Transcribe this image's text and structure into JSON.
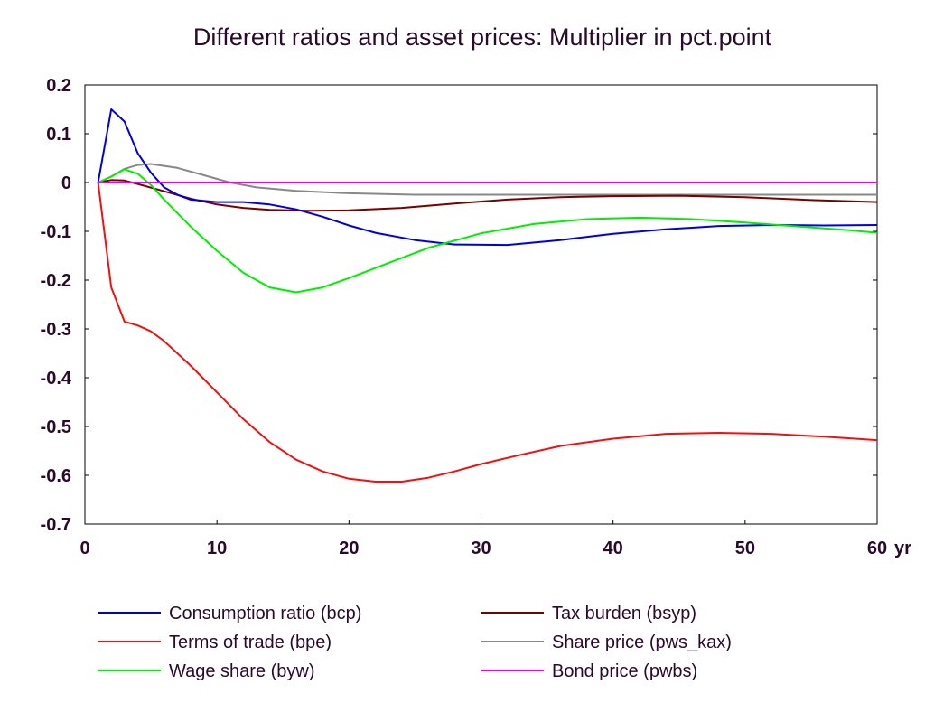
{
  "chart_data": {
    "type": "line",
    "title": "Different ratios and asset prices: Multiplier in pct.point",
    "x_unit_label": "yr",
    "xlim": [
      0,
      60
    ],
    "ylim": [
      -0.7,
      0.2
    ],
    "x_ticks": [
      0,
      10,
      20,
      30,
      40,
      50,
      60
    ],
    "x_tick_labels": [
      "0",
      "10",
      "20",
      "30",
      "40",
      "50",
      "60"
    ],
    "y_ticks": [
      0.2,
      0.1,
      0,
      -0.1,
      -0.2,
      -0.3,
      -0.4,
      -0.5,
      -0.6,
      -0.7
    ],
    "y_tick_labels": [
      "0.2",
      "0.1",
      "0",
      "-0.1",
      "-0.2",
      "-0.3",
      "-0.4",
      "-0.5",
      "-0.6",
      "-0.7"
    ],
    "grid": false,
    "legend_position": "bottom",
    "series": [
      {
        "name": "Consumption ratio (bcp)",
        "color": "#0000dd",
        "points": [
          [
            1,
            0
          ],
          [
            2,
            0.15
          ],
          [
            3,
            0.125
          ],
          [
            4,
            0.06
          ],
          [
            5,
            0.02
          ],
          [
            6,
            -0.01
          ],
          [
            7,
            -0.025
          ],
          [
            8,
            -0.035
          ],
          [
            10,
            -0.04
          ],
          [
            12,
            -0.04
          ],
          [
            14,
            -0.045
          ],
          [
            16,
            -0.055
          ],
          [
            18,
            -0.07
          ],
          [
            20,
            -0.088
          ],
          [
            22,
            -0.103
          ],
          [
            25,
            -0.118
          ],
          [
            28,
            -0.127
          ],
          [
            32,
            -0.128
          ],
          [
            36,
            -0.118
          ],
          [
            40,
            -0.105
          ],
          [
            44,
            -0.096
          ],
          [
            48,
            -0.089
          ],
          [
            52,
            -0.087
          ],
          [
            56,
            -0.088
          ],
          [
            60,
            -0.087
          ]
        ]
      },
      {
        "name": "Terms of trade (bpe)",
        "color": "#ee1111",
        "points": [
          [
            1,
            0
          ],
          [
            2,
            -0.215
          ],
          [
            3,
            -0.285
          ],
          [
            4,
            -0.293
          ],
          [
            5,
            -0.305
          ],
          [
            6,
            -0.325
          ],
          [
            8,
            -0.375
          ],
          [
            10,
            -0.43
          ],
          [
            12,
            -0.485
          ],
          [
            14,
            -0.532
          ],
          [
            16,
            -0.568
          ],
          [
            18,
            -0.592
          ],
          [
            20,
            -0.607
          ],
          [
            22,
            -0.613
          ],
          [
            24,
            -0.613
          ],
          [
            26,
            -0.605
          ],
          [
            28,
            -0.592
          ],
          [
            30,
            -0.577
          ],
          [
            33,
            -0.558
          ],
          [
            36,
            -0.54
          ],
          [
            40,
            -0.525
          ],
          [
            44,
            -0.515
          ],
          [
            48,
            -0.513
          ],
          [
            52,
            -0.515
          ],
          [
            56,
            -0.521
          ],
          [
            60,
            -0.528
          ]
        ]
      },
      {
        "name": "Wage share (byw)",
        "color": "#00ee00",
        "points": [
          [
            1,
            0
          ],
          [
            2,
            0.012
          ],
          [
            3,
            0.027
          ],
          [
            4,
            0.018
          ],
          [
            5,
            -0.005
          ],
          [
            6,
            -0.035
          ],
          [
            8,
            -0.09
          ],
          [
            10,
            -0.14
          ],
          [
            12,
            -0.185
          ],
          [
            14,
            -0.215
          ],
          [
            16,
            -0.225
          ],
          [
            18,
            -0.215
          ],
          [
            20,
            -0.196
          ],
          [
            23,
            -0.165
          ],
          [
            26,
            -0.134
          ],
          [
            30,
            -0.104
          ],
          [
            34,
            -0.085
          ],
          [
            38,
            -0.075
          ],
          [
            42,
            -0.072
          ],
          [
            46,
            -0.075
          ],
          [
            50,
            -0.082
          ],
          [
            54,
            -0.09
          ],
          [
            58,
            -0.098
          ],
          [
            60,
            -0.103
          ]
        ]
      },
      {
        "name": "Tax burden (bsyp)",
        "color": "#770000",
        "points": [
          [
            1,
            0
          ],
          [
            2,
            0.005
          ],
          [
            3,
            0.004
          ],
          [
            4,
            -0.003
          ],
          [
            6,
            -0.018
          ],
          [
            8,
            -0.033
          ],
          [
            10,
            -0.045
          ],
          [
            12,
            -0.052
          ],
          [
            14,
            -0.056
          ],
          [
            17,
            -0.058
          ],
          [
            20,
            -0.057
          ],
          [
            24,
            -0.052
          ],
          [
            28,
            -0.043
          ],
          [
            32,
            -0.035
          ],
          [
            36,
            -0.03
          ],
          [
            40,
            -0.028
          ],
          [
            45,
            -0.027
          ],
          [
            50,
            -0.03
          ],
          [
            55,
            -0.036
          ],
          [
            60,
            -0.04
          ]
        ]
      },
      {
        "name": "Share price (pws_kax)",
        "color": "#888888",
        "points": [
          [
            1,
            0
          ],
          [
            2,
            0.012
          ],
          [
            3,
            0.028
          ],
          [
            4,
            0.036
          ],
          [
            5,
            0.038
          ],
          [
            7,
            0.03
          ],
          [
            9,
            0.015
          ],
          [
            11,
            0
          ],
          [
            13,
            -0.01
          ],
          [
            16,
            -0.017
          ],
          [
            20,
            -0.022
          ],
          [
            25,
            -0.025
          ],
          [
            30,
            -0.025
          ],
          [
            40,
            -0.025
          ],
          [
            50,
            -0.025
          ],
          [
            60,
            -0.025
          ]
        ]
      },
      {
        "name": "Bond price (pwbs)",
        "color": "#ee00ee",
        "points": [
          [
            1,
            0
          ],
          [
            60,
            0
          ]
        ]
      }
    ]
  }
}
